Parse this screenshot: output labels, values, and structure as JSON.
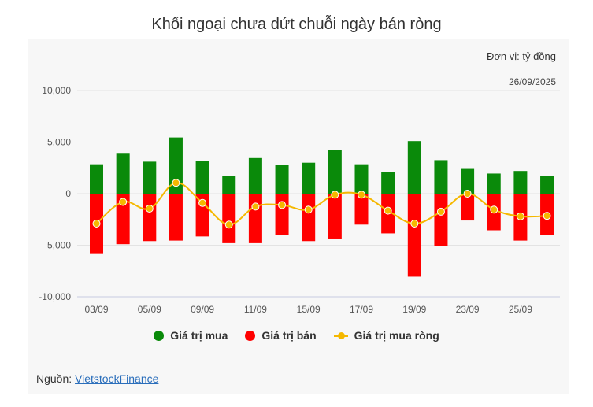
{
  "title": "Khối ngoại chưa dứt chuỗi ngày bán ròng",
  "unit_label": "Đơn vị: tỷ đồng",
  "date_label": "26/09/2025",
  "source": {
    "prefix": "Nguồn: ",
    "link_text": "VietstockFinance"
  },
  "colors": {
    "buy": "#0a8a0a",
    "sell": "#ff0000",
    "net": "#f5b800",
    "grid": "#e3e3e3",
    "axis": "#c7cbe0"
  },
  "chart_data": {
    "type": "bar",
    "title": "Khối ngoại chưa dứt chuỗi ngày bán ròng",
    "ylim": [
      -10000,
      10000
    ],
    "y_ticks": [
      10000,
      5000,
      0,
      -5000,
      -10000
    ],
    "y_tick_labels": [
      "10,000",
      "5,000",
      "0",
      "-5,000",
      "-10,000"
    ],
    "x_tick_labels": [
      "03/09",
      "05/09",
      "09/09",
      "11/09",
      "15/09",
      "17/09",
      "19/09",
      "23/09",
      "25/09"
    ],
    "x_tick_positions": [
      0,
      2,
      4,
      6,
      8,
      10,
      12,
      14,
      16
    ],
    "legend_position": "bottom-center",
    "grid": true,
    "series": [
      {
        "name": "Giá trị mua",
        "kind": "bar",
        "values": [
          2850,
          3950,
          3100,
          5450,
          3200,
          1750,
          3450,
          2750,
          3000,
          4250,
          2850,
          2100,
          5100,
          3250,
          2400,
          1950,
          2200,
          1750
        ]
      },
      {
        "name": "Giá trị bán",
        "kind": "bar",
        "values": [
          -5850,
          -4900,
          -4600,
          -4550,
          -4150,
          -4800,
          -4800,
          -4000,
          -4600,
          -4350,
          -3000,
          -3850,
          -8050,
          -5100,
          -2600,
          -3550,
          -4550,
          -4000
        ]
      },
      {
        "name": "Giá trị mua ròng",
        "kind": "line",
        "values": [
          -2900,
          -800,
          -1450,
          1050,
          -900,
          -3000,
          -1250,
          -1100,
          -1550,
          -100,
          -100,
          -1650,
          -2900,
          -1750,
          0,
          -1550,
          -2200,
          -2150
        ]
      }
    ]
  }
}
